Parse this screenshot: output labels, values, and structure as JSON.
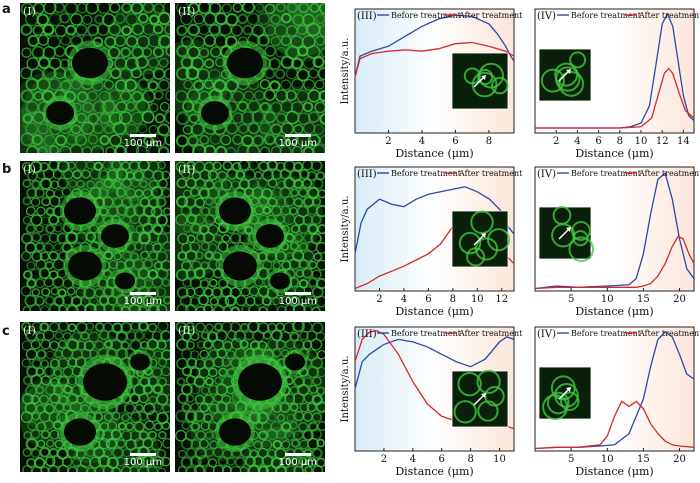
{
  "rows": [
    {
      "label": "a",
      "micro": [
        {
          "tag": "(I)",
          "scale": "100 μm"
        },
        {
          "tag": "(II)",
          "scale": "100 μm"
        }
      ]
    },
    {
      "label": "b",
      "micro": [
        {
          "tag": "(I)",
          "scale": "100 μm"
        },
        {
          "tag": "(II)",
          "scale": "100 μm"
        }
      ]
    },
    {
      "label": "c",
      "micro": [
        {
          "tag": "(I)",
          "scale": "100 μm"
        },
        {
          "tag": "(II)",
          "scale": "100 μm"
        }
      ]
    }
  ],
  "colors": {
    "before": "#2a4aa8",
    "after": "#d42a2a",
    "micro": "#3fc83f",
    "bg": "#061006"
  },
  "chart_data": [
    {
      "id": "a-III",
      "type": "line",
      "panel": "(III)",
      "xlabel": "Distance (μm)",
      "ylabel": "Intensity/a.u.",
      "xlim": [
        0,
        9.5
      ],
      "xticks": [
        2,
        4,
        6,
        8
      ],
      "ylim": [
        0,
        1
      ],
      "legend": [
        "Before treatment",
        "After treatment"
      ],
      "series": [
        {
          "name": "Before treatment",
          "x": [
            0,
            0.3,
            1,
            2,
            3,
            4,
            5,
            6,
            7,
            8,
            8.5,
            9,
            9.3,
            9.5
          ],
          "y": [
            0.45,
            0.62,
            0.66,
            0.7,
            0.78,
            0.86,
            0.92,
            0.95,
            0.94,
            0.88,
            0.8,
            0.7,
            0.62,
            0.58
          ]
        },
        {
          "name": "After treatment",
          "x": [
            0,
            0.3,
            1,
            2,
            3,
            4,
            5,
            6,
            7,
            8,
            9,
            9.5
          ],
          "y": [
            0.45,
            0.6,
            0.64,
            0.66,
            0.67,
            0.66,
            0.68,
            0.72,
            0.73,
            0.7,
            0.66,
            0.62
          ]
        }
      ]
    },
    {
      "id": "a-IV",
      "type": "line",
      "panel": "(IV)",
      "xlabel": "Distance (μm)",
      "ylabel": "",
      "xlim": [
        0,
        15
      ],
      "xticks": [
        2,
        4,
        6,
        8,
        10,
        12,
        14
      ],
      "ylim": [
        0,
        1
      ],
      "legend": [
        "Before treatment",
        "After treatment"
      ],
      "series": [
        {
          "name": "Before treatment",
          "x": [
            0,
            2,
            4,
            6,
            8,
            9,
            10,
            10.8,
            11.5,
            12,
            12.5,
            13,
            13.5,
            14,
            14.5,
            15
          ],
          "y": [
            0.04,
            0.04,
            0.04,
            0.04,
            0.04,
            0.05,
            0.08,
            0.22,
            0.6,
            0.88,
            0.96,
            0.86,
            0.58,
            0.3,
            0.14,
            0.1
          ]
        },
        {
          "name": "After treatment",
          "x": [
            0,
            2,
            4,
            6,
            8,
            10,
            11,
            11.6,
            12.2,
            12.6,
            13,
            13.6,
            14.2,
            15
          ],
          "y": [
            0.04,
            0.04,
            0.04,
            0.04,
            0.04,
            0.05,
            0.12,
            0.3,
            0.48,
            0.52,
            0.48,
            0.32,
            0.18,
            0.12
          ]
        }
      ]
    },
    {
      "id": "b-III",
      "type": "line",
      "panel": "(III)",
      "xlabel": "Distance (μm)",
      "ylabel": "Intensity/a.u.",
      "xlim": [
        0,
        13
      ],
      "xticks": [
        2,
        4,
        6,
        8,
        10,
        12
      ],
      "ylim": [
        0,
        1
      ],
      "legend": [
        "Before treatment",
        "After treatment"
      ],
      "series": [
        {
          "name": "Before treatment",
          "x": [
            0,
            0.5,
            1,
            2,
            3,
            4,
            5,
            6,
            7,
            8,
            9,
            10,
            11,
            12,
            12.5,
            13
          ],
          "y": [
            0.3,
            0.55,
            0.66,
            0.74,
            0.7,
            0.68,
            0.74,
            0.78,
            0.8,
            0.82,
            0.84,
            0.8,
            0.74,
            0.64,
            0.52,
            0.46
          ]
        },
        {
          "name": "After treatment",
          "x": [
            0,
            0.5,
            1,
            2,
            3,
            4,
            5,
            6,
            7,
            8,
            9,
            10,
            11,
            12,
            13
          ],
          "y": [
            0.02,
            0.04,
            0.06,
            0.12,
            0.16,
            0.2,
            0.25,
            0.3,
            0.38,
            0.52,
            0.62,
            0.6,
            0.48,
            0.32,
            0.22
          ]
        }
      ]
    },
    {
      "id": "b-IV",
      "type": "line",
      "panel": "(IV)",
      "xlabel": "Distance (μm)",
      "ylabel": "",
      "xlim": [
        0,
        22
      ],
      "xticks": [
        5,
        10,
        15,
        20
      ],
      "ylim": [
        0,
        1
      ],
      "legend": [
        "Before treatment",
        "After treatment"
      ],
      "series": [
        {
          "name": "Before treatment",
          "x": [
            0,
            3,
            6,
            10,
            13,
            14,
            15,
            16,
            17,
            18,
            19,
            20,
            21,
            22
          ],
          "y": [
            0.02,
            0.04,
            0.03,
            0.04,
            0.05,
            0.1,
            0.3,
            0.62,
            0.9,
            0.95,
            0.74,
            0.42,
            0.18,
            0.1
          ]
        },
        {
          "name": "After treatment",
          "x": [
            0,
            3,
            6,
            10,
            14,
            15,
            16,
            17,
            18,
            19,
            19.8,
            20.5,
            21.3,
            22
          ],
          "y": [
            0.02,
            0.03,
            0.03,
            0.03,
            0.03,
            0.04,
            0.06,
            0.12,
            0.22,
            0.36,
            0.44,
            0.42,
            0.3,
            0.22
          ]
        }
      ]
    },
    {
      "id": "c-III",
      "type": "line",
      "panel": "(III)",
      "xlabel": "Distance (μm)",
      "ylabel": "Intensity/a.u.",
      "xlim": [
        0,
        11
      ],
      "xticks": [
        2,
        4,
        6,
        8,
        10
      ],
      "ylim": [
        0,
        1
      ],
      "legend": [
        "Before treatment",
        "After treatment"
      ],
      "series": [
        {
          "name": "Before treatment",
          "x": [
            0,
            0.5,
            1,
            2,
            3,
            4,
            5,
            6,
            7,
            8,
            9,
            10,
            10.5,
            11
          ],
          "y": [
            0.5,
            0.72,
            0.78,
            0.86,
            0.9,
            0.88,
            0.84,
            0.78,
            0.72,
            0.68,
            0.74,
            0.88,
            0.92,
            0.9
          ]
        },
        {
          "name": "After treatment",
          "x": [
            0,
            0.5,
            1,
            1.5,
            2,
            3,
            4,
            5,
            6,
            7,
            8,
            9,
            10,
            11
          ],
          "y": [
            0.72,
            0.9,
            0.96,
            0.97,
            0.94,
            0.78,
            0.56,
            0.38,
            0.28,
            0.24,
            0.24,
            0.26,
            0.22,
            0.18
          ]
        }
      ]
    },
    {
      "id": "c-IV",
      "type": "line",
      "panel": "(IV)",
      "xlabel": "Distance (μm)",
      "ylabel": "",
      "xlim": [
        0,
        22
      ],
      "xticks": [
        5,
        10,
        15,
        20
      ],
      "ylim": [
        0,
        1
      ],
      "legend": [
        "Before treatment",
        "After treatment"
      ],
      "series": [
        {
          "name": "Before treatment",
          "x": [
            0,
            3,
            6,
            9,
            11,
            13,
            15,
            16,
            17,
            18,
            19,
            20,
            21,
            22
          ],
          "y": [
            0.02,
            0.03,
            0.03,
            0.04,
            0.05,
            0.14,
            0.42,
            0.68,
            0.9,
            0.96,
            0.92,
            0.78,
            0.62,
            0.58
          ]
        },
        {
          "name": "After treatment",
          "x": [
            0,
            3,
            6,
            9,
            10,
            11,
            12,
            13,
            14,
            15,
            16,
            17,
            18,
            19,
            20,
            22
          ],
          "y": [
            0.02,
            0.03,
            0.03,
            0.05,
            0.12,
            0.28,
            0.4,
            0.36,
            0.4,
            0.34,
            0.22,
            0.14,
            0.08,
            0.05,
            0.04,
            0.03
          ]
        }
      ]
    }
  ]
}
